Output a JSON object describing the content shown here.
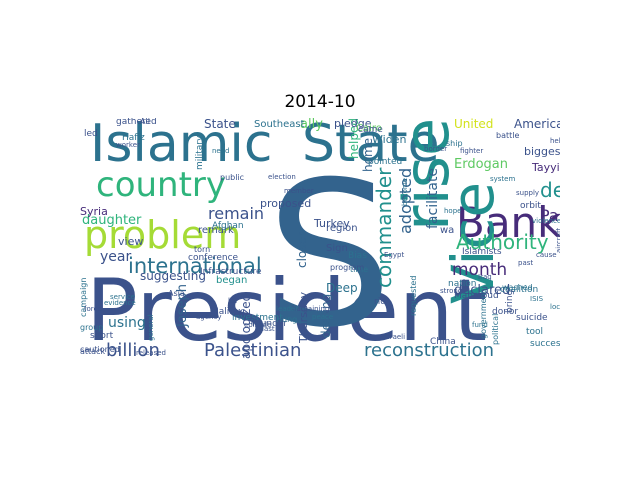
{
  "figure": {
    "title": "2014-10"
  },
  "palette": {
    "dark_purple": "#472c7a",
    "navy": "#3b528b",
    "blue": "#33638d",
    "teal_blue": "#2c728e",
    "teal": "#21908d",
    "green": "#2fb47c",
    "light_green": "#5ec962",
    "yellow_green": "#a5db36",
    "yellow": "#d2e21b"
  },
  "words": [
    {
      "text": "President",
      "color": "navy"
    },
    {
      "text": "S",
      "color": "blue"
    },
    {
      "text": "Islamic",
      "color": "teal_blue"
    },
    {
      "text": "State",
      "color": "teal_blue"
    },
    {
      "text": "Bank",
      "color": "dark_purple"
    },
    {
      "text": "rise",
      "color": "teal"
    },
    {
      "text": "Vice",
      "color": "teal"
    },
    {
      "text": "problem",
      "color": "yellow_green"
    },
    {
      "text": "country",
      "color": "green"
    },
    {
      "text": "international",
      "color": "teal_blue"
    },
    {
      "text": "billion",
      "color": "navy"
    },
    {
      "text": "Palestinian",
      "color": "navy"
    },
    {
      "text": "reconstruction",
      "color": "teal_blue"
    },
    {
      "text": "Authority",
      "color": "green"
    },
    {
      "text": "death",
      "color": "teal"
    },
    {
      "text": "Papa",
      "color": "dark_purple"
    },
    {
      "text": "month",
      "color": "dark_purple"
    },
    {
      "text": "commander",
      "color": "teal"
    },
    {
      "text": "adopted",
      "color": "blue"
    },
    {
      "text": "remain",
      "color": "navy"
    },
    {
      "text": "daughter",
      "color": "green"
    },
    {
      "text": "year",
      "color": "navy"
    },
    {
      "text": "using",
      "color": "teal_blue"
    },
    {
      "text": "Joseph",
      "color": "blue"
    },
    {
      "text": "Erdogan",
      "color": "light_green"
    },
    {
      "text": "Tayyip",
      "color": "dark_purple"
    },
    {
      "text": "United",
      "color": "yellow"
    },
    {
      "text": "American",
      "color": "navy"
    },
    {
      "text": "declared",
      "color": "navy"
    },
    {
      "text": "biggest",
      "color": "navy"
    },
    {
      "text": "facilitate",
      "color": "blue"
    },
    {
      "text": "ally",
      "color": "light_green"
    },
    {
      "text": "Widen",
      "color": "teal_blue"
    },
    {
      "text": "home",
      "color": "blue"
    },
    {
      "text": "helped",
      "color": "green"
    },
    {
      "text": "proposed",
      "color": "navy"
    },
    {
      "text": "Turkey",
      "color": "navy"
    },
    {
      "text": "closer",
      "color": "blue"
    },
    {
      "text": "region",
      "color": "navy"
    },
    {
      "text": "Sign",
      "color": "navy"
    },
    {
      "text": "Thursday",
      "color": "navy"
    },
    {
      "text": "dealing",
      "color": "blue"
    },
    {
      "text": "Deep",
      "color": "teal_blue"
    },
    {
      "text": "suggesting",
      "color": "navy"
    },
    {
      "text": "began",
      "color": "teal"
    },
    {
      "text": "apologized",
      "color": "navy"
    },
    {
      "text": "view",
      "color": "navy"
    },
    {
      "text": "Syria",
      "color": "dark_purple"
    },
    {
      "text": "remark",
      "color": "navy"
    },
    {
      "text": "State",
      "color": "navy"
    },
    {
      "text": "Southeast",
      "color": "teal_blue"
    },
    {
      "text": "pledge",
      "color": "navy"
    },
    {
      "text": "gathered",
      "color": "navy"
    },
    {
      "text": "military",
      "color": "teal_blue"
    },
    {
      "text": "Hafiz",
      "color": "teal_blue"
    },
    {
      "text": "Afghan",
      "color": "teal_blue"
    },
    {
      "text": "conference",
      "color": "navy"
    },
    {
      "text": "Infrastructure",
      "color": "navy"
    },
    {
      "text": "investment",
      "color": "teal_blue"
    },
    {
      "text": "founder",
      "color": "navy"
    },
    {
      "text": "Hung",
      "color": "teal_blue"
    },
    {
      "text": "short",
      "color": "navy"
    },
    {
      "text": "cautioned",
      "color": "navy"
    },
    {
      "text": "torn",
      "color": "navy"
    },
    {
      "text": "Bias",
      "color": "teal_blue"
    },
    {
      "text": "Cairo",
      "color": "light_green"
    },
    {
      "text": "wa",
      "color": "navy"
    },
    {
      "text": "nation",
      "color": "teal_blue"
    },
    {
      "text": "Mahmoud",
      "color": "navy"
    },
    {
      "text": "requested",
      "color": "teal_blue"
    },
    {
      "text": "coalition",
      "color": "teal_blue"
    },
    {
      "text": "donor",
      "color": "navy"
    },
    {
      "text": "suicide",
      "color": "navy"
    },
    {
      "text": "tool",
      "color": "teal_blue"
    },
    {
      "text": "bring",
      "color": "navy"
    },
    {
      "text": "success",
      "color": "teal_blue"
    },
    {
      "text": "China",
      "color": "navy"
    },
    {
      "text": "Islamists",
      "color": "navy"
    },
    {
      "text": "orbit",
      "color": "navy"
    },
    {
      "text": "group",
      "color": "teal_blue"
    },
    {
      "text": "attack",
      "color": "navy"
    },
    {
      "text": "political",
      "color": "teal_blue"
    },
    {
      "text": "government",
      "color": "teal_blue"
    },
    {
      "text": "rid",
      "color": "navy"
    },
    {
      "text": "pointed",
      "color": "teal_blue"
    },
    {
      "text": "came",
      "color": "navy"
    },
    {
      "text": "led",
      "color": "navy"
    },
    {
      "text": "ship",
      "color": "teal_blue"
    },
    {
      "text": "fighter",
      "color": "navy"
    },
    {
      "text": "time",
      "color": "teal_blue"
    },
    {
      "text": "program",
      "color": "navy"
    },
    {
      "text": "Asia",
      "color": "navy"
    },
    {
      "text": "Halifax",
      "color": "navy"
    },
    {
      "text": "public",
      "color": "navy"
    },
    {
      "text": "campaign",
      "color": "teal_blue"
    },
    {
      "text": "general",
      "color": "teal_blue"
    },
    {
      "text": "Ali",
      "color": "navy"
    },
    {
      "text": "washed",
      "color": "teal_blue"
    },
    {
      "text": "supply",
      "color": "navy"
    },
    {
      "text": "battle",
      "color": "navy"
    },
    {
      "text": "become",
      "color": "teal_blue"
    },
    {
      "text": "lot",
      "color": "navy"
    },
    {
      "text": "peace",
      "color": "teal_blue"
    },
    {
      "text": "strong",
      "color": "navy"
    },
    {
      "text": "service",
      "color": "teal_blue"
    },
    {
      "text": "agency",
      "color": "navy"
    },
    {
      "text": "last",
      "color": "navy"
    },
    {
      "text": "Israeli",
      "color": "navy"
    },
    {
      "text": "fund",
      "color": "teal_blue"
    },
    {
      "text": "violence",
      "color": "teal_blue"
    },
    {
      "text": "bargaining",
      "color": "navy"
    },
    {
      "text": "aircraft",
      "color": "navy"
    },
    {
      "text": "evidence",
      "color": "teal_blue"
    },
    {
      "text": "episode",
      "color": "navy"
    },
    {
      "text": "election",
      "color": "navy"
    },
    {
      "text": "leader",
      "color": "teal_blue"
    },
    {
      "text": "border",
      "color": "navy"
    },
    {
      "text": "member",
      "color": "navy"
    },
    {
      "text": "system",
      "color": "teal_blue"
    },
    {
      "text": "worker",
      "color": "navy"
    },
    {
      "text": "hope",
      "color": "teal_blue"
    },
    {
      "text": "help",
      "color": "navy"
    },
    {
      "text": "force",
      "color": "navy"
    },
    {
      "text": "need",
      "color": "teal_blue"
    },
    {
      "text": "cause",
      "color": "navy"
    },
    {
      "text": "local",
      "color": "teal_blue"
    },
    {
      "text": "past",
      "color": "navy"
    },
    {
      "text": "Egypt",
      "color": "navy"
    },
    {
      "text": "ISIS",
      "color": "teal_blue"
    },
    {
      "text": "Iraq",
      "color": "navy"
    },
    {
      "text": "released",
      "color": "navy"
    }
  ]
}
